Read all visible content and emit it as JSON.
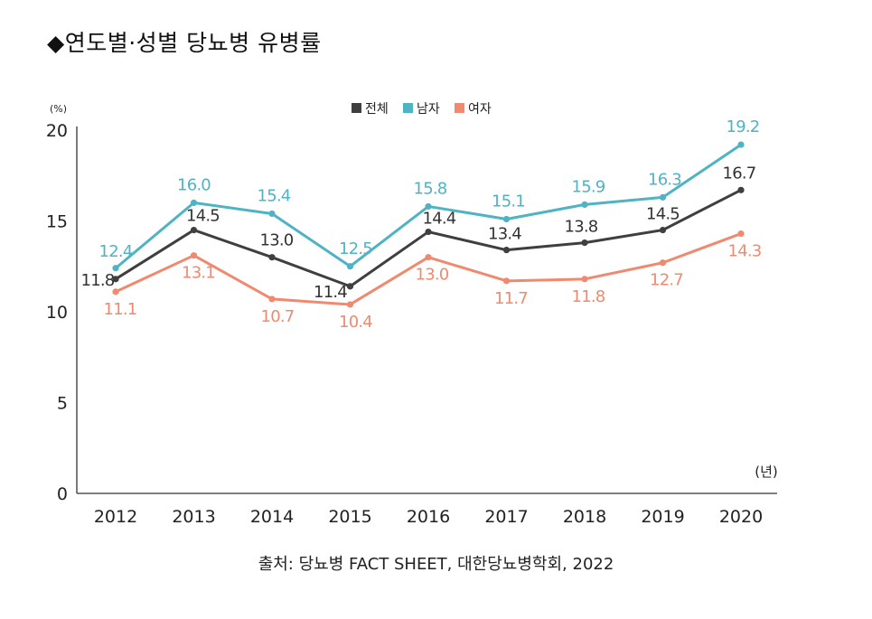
{
  "title": "◆연도별·성별 당뇨병 유병률",
  "source": "출처: 당뇨병 FACT SHEET, 대한당뇨병학회, 2022",
  "chart_data": {
    "type": "line",
    "title": "연도별·성별 당뇨병 유병률",
    "ylabel": "(%)",
    "xlabel": "(년)",
    "ylim": [
      0,
      20
    ],
    "yticks": [
      0,
      5,
      10,
      15,
      20
    ],
    "categories": [
      "2012",
      "2013",
      "2014",
      "2015",
      "2016",
      "2017",
      "2018",
      "2019",
      "2020"
    ],
    "legend_position": "top-center",
    "grid": false,
    "series": [
      {
        "name": "전체",
        "color": "#3f3f3f",
        "values": [
          11.8,
          14.5,
          13.0,
          11.4,
          14.4,
          13.4,
          13.8,
          14.5,
          16.7
        ],
        "labels": [
          "11.8",
          "14.5",
          "13.0",
          "11.4",
          "14.4",
          "13.4",
          "13.8",
          "14.5",
          "16.7"
        ]
      },
      {
        "name": "남자",
        "color": "#4fb3c4",
        "values": [
          12.4,
          16.0,
          15.4,
          12.5,
          15.8,
          15.1,
          15.9,
          16.3,
          19.2
        ],
        "labels": [
          "12.4",
          "16.0",
          "15.4",
          "12.5",
          "15.8",
          "15.1",
          "15.9",
          "16.3",
          "19.2"
        ]
      },
      {
        "name": "여자",
        "color": "#ef8a70",
        "values": [
          11.1,
          13.1,
          10.7,
          10.4,
          13.0,
          11.7,
          11.8,
          12.7,
          14.3
        ],
        "labels": [
          "11.1",
          "13.1",
          "10.7",
          "10.4",
          "13.0",
          "11.7",
          "11.8",
          "12.7",
          "14.3"
        ]
      }
    ]
  }
}
